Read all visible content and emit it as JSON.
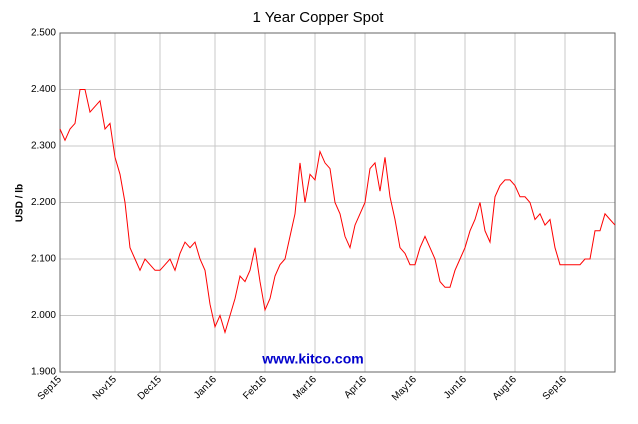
{
  "chart_data": {
    "type": "line",
    "title": "1 Year Copper Spot",
    "y_label": "USD / lb",
    "watermark": "www.kitco.com",
    "color": "#ff0000",
    "grid": true,
    "categories": [
      "Sep15",
      null,
      null,
      null,
      null,
      null,
      null,
      null,
      null,
      null,
      null,
      "Nov15",
      null,
      null,
      null,
      null,
      null,
      null,
      null,
      null,
      "Dec15",
      null,
      null,
      null,
      null,
      null,
      null,
      null,
      null,
      null,
      null,
      "Jan16",
      null,
      null,
      null,
      null,
      null,
      null,
      null,
      null,
      null,
      "Feb16",
      null,
      null,
      null,
      null,
      null,
      null,
      null,
      null,
      null,
      "Mar16",
      null,
      null,
      null,
      null,
      null,
      null,
      null,
      null,
      null,
      "Apr16",
      null,
      null,
      null,
      null,
      null,
      null,
      null,
      null,
      null,
      "May16",
      null,
      null,
      null,
      null,
      null,
      null,
      null,
      null,
      null,
      "Jun16",
      null,
      null,
      null,
      null,
      null,
      null,
      null,
      null,
      null,
      "Aug16",
      null,
      null,
      null,
      null,
      null,
      null,
      null,
      null,
      null,
      "Sep16",
      null,
      null,
      null,
      null,
      null,
      null,
      null,
      null,
      null,
      null
    ],
    "values": [
      2.33,
      2.31,
      2.33,
      2.34,
      2.4,
      2.4,
      2.36,
      2.37,
      2.38,
      2.33,
      2.34,
      2.28,
      2.25,
      2.2,
      2.12,
      2.1,
      2.08,
      2.1,
      2.09,
      2.08,
      2.08,
      2.09,
      2.1,
      2.08,
      2.11,
      2.13,
      2.12,
      2.13,
      2.1,
      2.08,
      2.02,
      1.98,
      2.0,
      1.97,
      2.0,
      2.03,
      2.07,
      2.06,
      2.08,
      2.12,
      2.06,
      2.01,
      2.03,
      2.07,
      2.09,
      2.1,
      2.14,
      2.18,
      2.27,
      2.2,
      2.25,
      2.24,
      2.29,
      2.27,
      2.26,
      2.2,
      2.18,
      2.14,
      2.12,
      2.16,
      2.18,
      2.2,
      2.26,
      2.27,
      2.22,
      2.28,
      2.21,
      2.17,
      2.12,
      2.11,
      2.09,
      2.09,
      2.12,
      2.14,
      2.12,
      2.1,
      2.06,
      2.05,
      2.05,
      2.08,
      2.1,
      2.12,
      2.15,
      2.17,
      2.2,
      2.15,
      2.13,
      2.21,
      2.23,
      2.24,
      2.24,
      2.23,
      2.21,
      2.21,
      2.2,
      2.17,
      2.18,
      2.16,
      2.17,
      2.12,
      2.09,
      2.09,
      2.09,
      2.09,
      2.09,
      2.1,
      2.1,
      2.15,
      2.15,
      2.18,
      2.17,
      2.16
    ],
    "ylim": [
      1.9,
      2.5
    ],
    "yticks": [
      {
        "value": 1.9,
        "label": "1.900"
      },
      {
        "value": 2.0,
        "label": "2.000"
      },
      {
        "value": 2.1,
        "label": "2.100"
      },
      {
        "value": 2.2,
        "label": "2.200"
      },
      {
        "value": 2.3,
        "label": "2.300"
      },
      {
        "value": 2.4,
        "label": "2.400"
      },
      {
        "value": 2.5,
        "label": "2.500"
      }
    ]
  }
}
